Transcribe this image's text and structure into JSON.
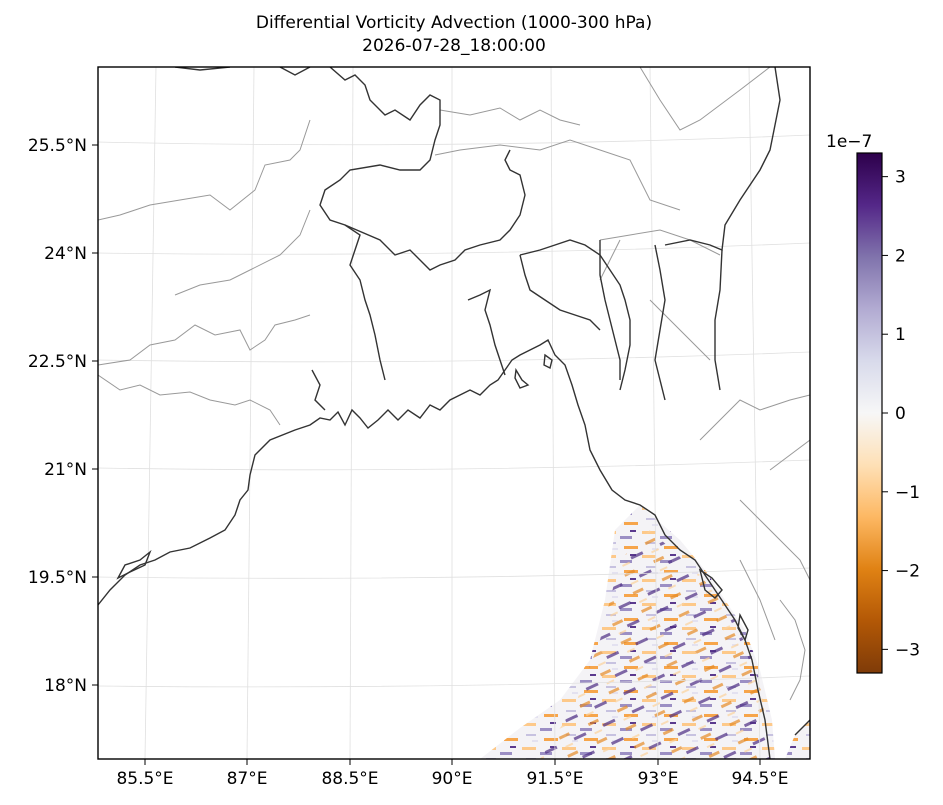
{
  "map": {
    "title": "Differential Vorticity Advection (1000-300 hPa)",
    "subtitle": "2026-07-28_18:00:00",
    "lat_labels": [
      "25.5°N",
      "24°N",
      "22.5°N",
      "21°N",
      "19.5°N",
      "18°N"
    ],
    "lon_labels": [
      "85.5°E",
      "87°E",
      "88.5°E",
      "90°E",
      "91.5°E",
      "93°E",
      "94.5°E"
    ],
    "gridlines": true,
    "colors": {
      "coastline": "#333333",
      "borders": "#999999",
      "gridlines": "#e0e0e0"
    }
  },
  "colorbar": {
    "exponent_label": "1e−7",
    "ticks": [
      "3",
      "2",
      "1",
      "0",
      "−1",
      "−2",
      "−3"
    ],
    "tick_values": [
      3,
      2,
      1,
      0,
      -1,
      -2,
      -3
    ],
    "range": [
      -3.3,
      3.3
    ],
    "colormap": "PuOr",
    "colors": [
      "#7f3b08",
      "#b35806",
      "#e08214",
      "#fdb863",
      "#fee0b6",
      "#f7f7f7",
      "#d8daeb",
      "#b2abd2",
      "#8073ac",
      "#542788",
      "#2d004b"
    ]
  }
}
